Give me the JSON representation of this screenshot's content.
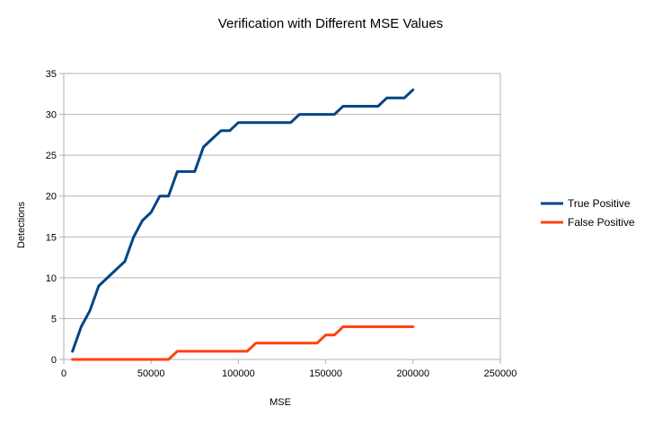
{
  "chart_data": {
    "type": "line",
    "title": "Verification with Different MSE Values",
    "xlabel": "MSE",
    "ylabel": "Detections",
    "xlim": [
      0,
      250000
    ],
    "ylim": [
      0,
      35
    ],
    "xticks": [
      0,
      50000,
      100000,
      150000,
      200000,
      250000
    ],
    "yticks": [
      0,
      5,
      10,
      15,
      20,
      25,
      30,
      35
    ],
    "grid": "horizontal",
    "legend": "right",
    "series": [
      {
        "name": "True Positive",
        "color": "#004586",
        "x": [
          5000,
          10000,
          15000,
          20000,
          25000,
          30000,
          35000,
          40000,
          45000,
          50000,
          55000,
          60000,
          65000,
          70000,
          75000,
          80000,
          85000,
          90000,
          95000,
          100000,
          105000,
          110000,
          115000,
          120000,
          125000,
          130000,
          135000,
          140000,
          145000,
          150000,
          155000,
          160000,
          165000,
          170000,
          175000,
          180000,
          185000,
          190000,
          195000,
          200000
        ],
        "values": [
          1,
          4,
          6,
          9,
          10,
          11,
          12,
          15,
          17,
          18,
          20,
          20,
          23,
          23,
          23,
          26,
          27,
          28,
          28,
          29,
          29,
          29,
          29,
          29,
          29,
          29,
          30,
          30,
          30,
          30,
          30,
          31,
          31,
          31,
          31,
          31,
          32,
          32,
          32,
          33
        ]
      },
      {
        "name": "False Positive",
        "color": "#ff420e",
        "x": [
          5000,
          10000,
          15000,
          20000,
          25000,
          30000,
          35000,
          40000,
          45000,
          50000,
          55000,
          60000,
          65000,
          70000,
          75000,
          80000,
          85000,
          90000,
          95000,
          100000,
          105000,
          110000,
          115000,
          120000,
          125000,
          130000,
          135000,
          140000,
          145000,
          150000,
          155000,
          160000,
          165000,
          170000,
          175000,
          180000,
          185000,
          190000,
          195000,
          200000
        ],
        "values": [
          0,
          0,
          0,
          0,
          0,
          0,
          0,
          0,
          0,
          0,
          0,
          0,
          1,
          1,
          1,
          1,
          1,
          1,
          1,
          1,
          1,
          2,
          2,
          2,
          2,
          2,
          2,
          2,
          2,
          3,
          3,
          4,
          4,
          4,
          4,
          4,
          4,
          4,
          4,
          4
        ]
      }
    ]
  }
}
